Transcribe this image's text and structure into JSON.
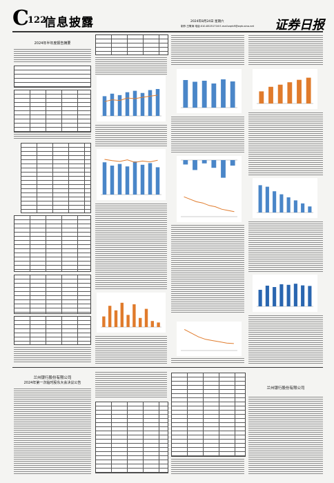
{
  "header": {
    "section": "C",
    "page": "122",
    "title": "信息披露",
    "date": "2024年8月24日 星期六",
    "contact": "制作:王敬涛 电话:010-83251716 E-mail:zqrb9@zqrb.sina.net",
    "logo": "证券日报"
  },
  "articles": {
    "top_left": {
      "title": "2024年半年度报告摘要"
    },
    "bottom_left": {
      "company": "兰州银行股份有限公司",
      "title": "2024年第一次临时股东大会决议公告"
    },
    "bottom_right": {
      "company": "兰州银行股份有限公司"
    }
  },
  "figures": [
    {
      "kind": "bar",
      "color": "#4a86c8",
      "line_color": "#e07b2c",
      "ylim": [
        0,
        100
      ],
      "values": [
        55,
        62,
        58,
        66,
        70,
        64,
        72,
        75
      ],
      "line": [
        40,
        45,
        43,
        50,
        48,
        52,
        55,
        58
      ]
    },
    {
      "kind": "bar",
      "color": "#4a86c8",
      "line_color": "#e07b2c",
      "ylim": [
        0,
        100
      ],
      "values": [
        78,
        70,
        74,
        68,
        80,
        72,
        76,
        66
      ],
      "line": [
        85,
        82,
        80,
        84,
        78,
        81,
        79,
        83
      ]
    },
    {
      "kind": "bar",
      "color": "#e07b2c",
      "ylim": [
        0,
        100
      ],
      "values": [
        35,
        70,
        55,
        80,
        40,
        75,
        30,
        60,
        20,
        15
      ]
    },
    {
      "kind": "bar",
      "color": "#4a86c8",
      "ylim": [
        0,
        100
      ],
      "values": [
        80,
        75,
        78,
        70,
        82,
        76
      ]
    },
    {
      "kind": "bar",
      "color": "#4a86c8",
      "ylim": [
        -100,
        0
      ],
      "values": [
        -20,
        -45,
        -15,
        -35,
        -80,
        -25
      ]
    },
    {
      "kind": "line",
      "color": "#e07b2c",
      "ylim": [
        0,
        100
      ],
      "values": [
        80,
        70,
        60,
        55,
        45,
        40,
        30,
        25,
        20
      ]
    },
    {
      "kind": "bar",
      "color": "#e07b2c",
      "ylim": [
        0,
        100
      ],
      "values": [
        40,
        55,
        62,
        70,
        78,
        85
      ]
    },
    {
      "kind": "bar",
      "color": "#4a86c8",
      "ylim": [
        0,
        100
      ],
      "values": [
        90,
        85,
        70,
        60,
        50,
        40,
        30,
        20
      ]
    },
    {
      "kind": "bar",
      "color": "#2a66b0",
      "ylim": [
        0,
        100
      ],
      "values": [
        60,
        75,
        70,
        80,
        78,
        82,
        76,
        74
      ]
    },
    {
      "kind": "line",
      "color": "#e07b2c",
      "ylim": [
        0,
        100
      ],
      "values": [
        85,
        70,
        55,
        45,
        40,
        35,
        30,
        28
      ]
    }
  ]
}
